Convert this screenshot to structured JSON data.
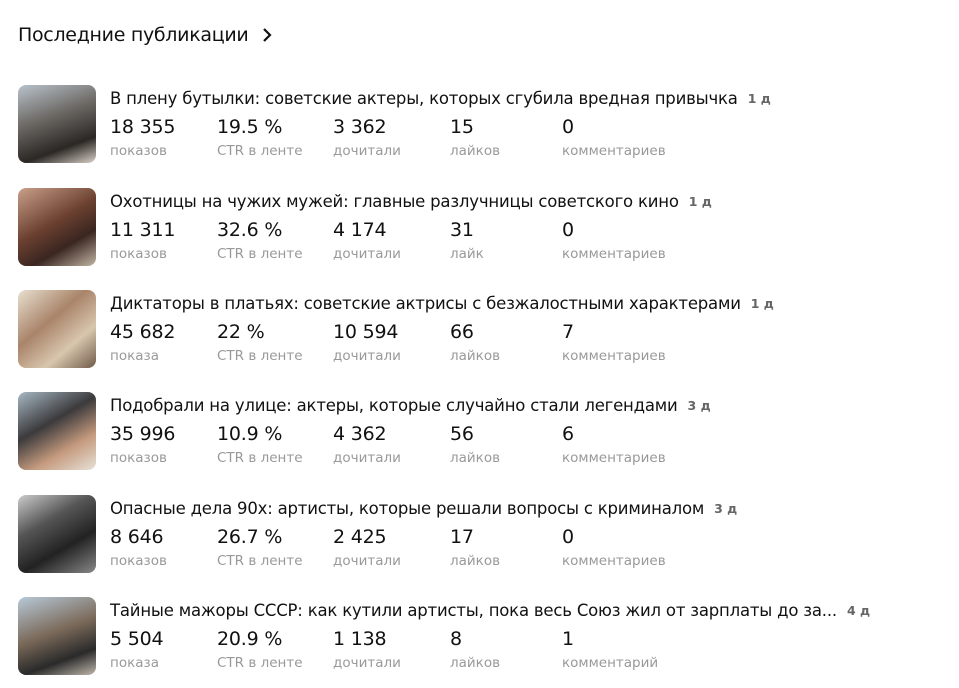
{
  "header": {
    "title": "Последние публикации"
  },
  "items": [
    {
      "title": "В плену бутылки: советские актеры, которых сгубила вредная привычка",
      "age": "1 д",
      "stats": [
        {
          "value": "18 355",
          "label": "показов"
        },
        {
          "value": "19.5 %",
          "label": "CTR в ленте"
        },
        {
          "value": "3 362",
          "label": "дочитали"
        },
        {
          "value": "15",
          "label": "лайков"
        },
        {
          "value": "0",
          "label": "комментариев"
        }
      ]
    },
    {
      "title": "Охотницы на чужих мужей: главные разлучницы советского кино",
      "age": "1 д",
      "stats": [
        {
          "value": "11 311",
          "label": "показов"
        },
        {
          "value": "32.6 %",
          "label": "CTR в ленте"
        },
        {
          "value": "4 174",
          "label": "дочитали"
        },
        {
          "value": "31",
          "label": "лайк"
        },
        {
          "value": "0",
          "label": "комментариев"
        }
      ]
    },
    {
      "title": "Диктаторы в платьях: советские актрисы с безжалостными характерами",
      "age": "1 д",
      "stats": [
        {
          "value": "45 682",
          "label": "показа"
        },
        {
          "value": "22 %",
          "label": "CTR в ленте"
        },
        {
          "value": "10 594",
          "label": "дочитали"
        },
        {
          "value": "66",
          "label": "лайков"
        },
        {
          "value": "7",
          "label": "комментариев"
        }
      ]
    },
    {
      "title": "Подобрали на улице: актеры, которые случайно стали легендами",
      "age": "3 д",
      "stats": [
        {
          "value": "35 996",
          "label": "показов"
        },
        {
          "value": "10.9 %",
          "label": "CTR в ленте"
        },
        {
          "value": "4 362",
          "label": "дочитали"
        },
        {
          "value": "56",
          "label": "лайков"
        },
        {
          "value": "6",
          "label": "комментариев"
        }
      ]
    },
    {
      "title": "Опасные дела 90х: артисты, которые решали вопросы с криминалом",
      "age": "3 д",
      "stats": [
        {
          "value": "8 646",
          "label": "показов"
        },
        {
          "value": "26.7 %",
          "label": "CTR в ленте"
        },
        {
          "value": "2 425",
          "label": "дочитали"
        },
        {
          "value": "17",
          "label": "лайков"
        },
        {
          "value": "0",
          "label": "комментариев"
        }
      ]
    },
    {
      "title": "Тайные мажоры СССР: как кутили артисты, пока весь Союз жил от зарплаты до за...",
      "age": "4 д",
      "stats": [
        {
          "value": "5 504",
          "label": "показа"
        },
        {
          "value": "20.9 %",
          "label": "CTR в ленте"
        },
        {
          "value": "1 138",
          "label": "дочитали"
        },
        {
          "value": "8",
          "label": "лайков"
        },
        {
          "value": "1",
          "label": "комментарий"
        }
      ]
    }
  ]
}
